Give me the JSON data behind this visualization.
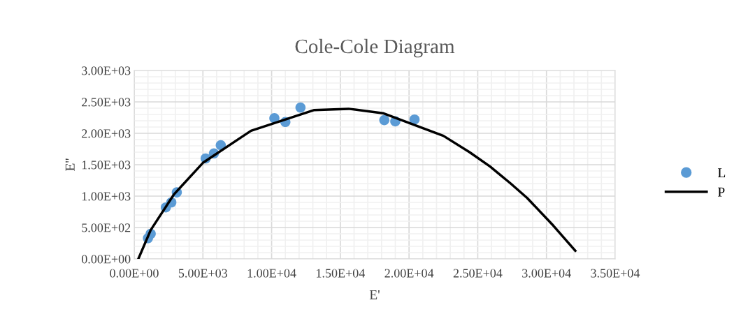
{
  "chart_data": {
    "type": "scatter",
    "title": "Cole-Cole Diagram",
    "xlabel": "E'",
    "ylabel": "E''",
    "xlim": [
      0,
      35000
    ],
    "ylim": [
      0,
      3000
    ],
    "xticks": [
      {
        "value": 0,
        "label": "0.00E+00"
      },
      {
        "value": 5000,
        "label": "5.00E+03"
      },
      {
        "value": 10000,
        "label": "1.00E+04"
      },
      {
        "value": 15000,
        "label": "1.50E+04"
      },
      {
        "value": 20000,
        "label": "2.00E+04"
      },
      {
        "value": 25000,
        "label": "2.50E+04"
      },
      {
        "value": 30000,
        "label": "3.00E+04"
      },
      {
        "value": 35000,
        "label": "3.50E+04"
      }
    ],
    "yticks": [
      {
        "value": 0,
        "label": "0.00E+00"
      },
      {
        "value": 500,
        "label": "5.00E+02"
      },
      {
        "value": 1000,
        "label": "1.00E+03"
      },
      {
        "value": 1500,
        "label": "1.50E+03"
      },
      {
        "value": 2000,
        "label": "2.00E+03"
      },
      {
        "value": 2500,
        "label": "2.50E+03"
      },
      {
        "value": 3000,
        "label": "3.00E+03"
      }
    ],
    "grid": true,
    "legend": "right",
    "series": [
      {
        "name": "L",
        "marker": "circle",
        "color": "#5b9bd5",
        "x": [
          1000,
          1200,
          2300,
          2700,
          3100,
          5200,
          5800,
          6300,
          10200,
          11000,
          12100,
          18200,
          19000,
          20400
        ],
        "values": [
          330,
          400,
          820,
          900,
          1060,
          1600,
          1680,
          1810,
          2240,
          2180,
          2410,
          2210,
          2190,
          2220
        ]
      },
      {
        "name": "P",
        "type": "line",
        "marker": "none",
        "line_style": "solid",
        "color": "#000000",
        "x": [
          300,
          1200,
          2900,
          5000,
          8500,
          13100,
          15600,
          18100,
          22500,
          24400,
          25900,
          27400,
          28600,
          30500,
          32100
        ],
        "values": [
          0,
          460,
          1030,
          1530,
          2040,
          2370,
          2390,
          2320,
          1960,
          1700,
          1470,
          1200,
          970,
          530,
          130
        ]
      }
    ]
  }
}
